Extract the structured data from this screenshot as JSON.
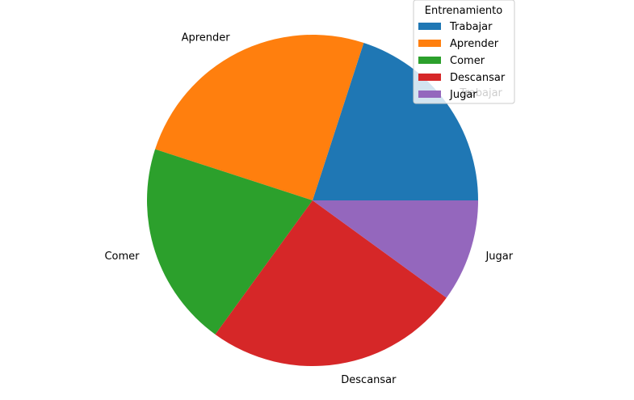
{
  "chart_data": {
    "type": "pie",
    "categories": [
      "Trabajar",
      "Aprender",
      "Comer",
      "Descansar",
      "Jugar"
    ],
    "values": [
      20,
      25,
      20,
      25,
      10
    ],
    "colors": [
      "#1f77b4",
      "#ff7f0e",
      "#2ca02c",
      "#d62728",
      "#9467bd"
    ],
    "start_angle_deg": 0,
    "direction": "counterclockwise",
    "legend": {
      "title": "Entrenamiento",
      "placement": "top-right",
      "entries": [
        "Trabajar",
        "Aprender",
        "Comer",
        "Descansar",
        "Jugar"
      ]
    }
  }
}
